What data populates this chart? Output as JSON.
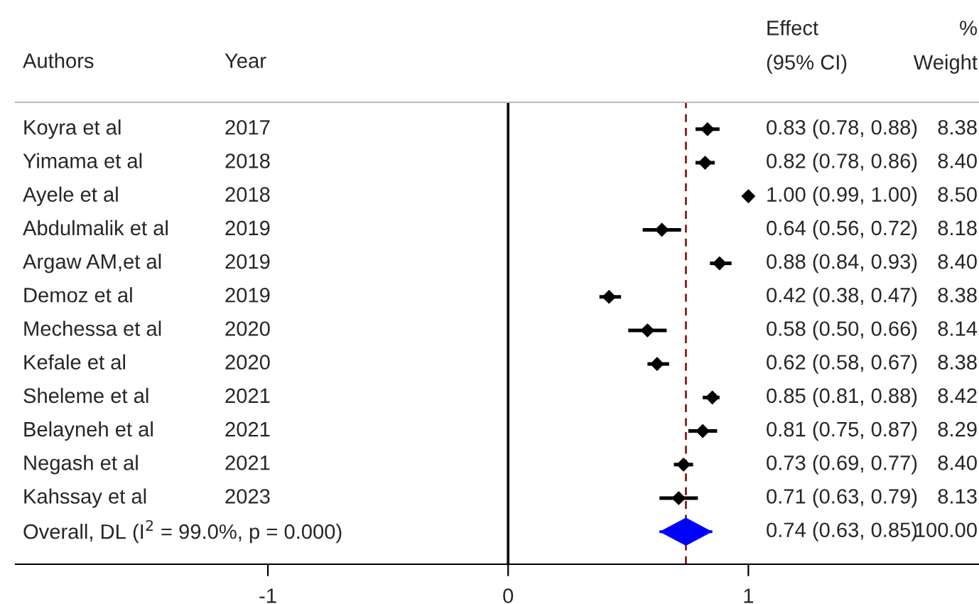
{
  "chart_data": {
    "type": "scatter",
    "orientation": "horizontal",
    "categories": [
      "Koyra et al",
      "Yimama et al",
      "Ayele et al",
      "Abdulmalik et al",
      "Argaw AM,et al",
      "Demoz et al",
      "Mechessa et al",
      "Kefale et al",
      "Sheleme et al",
      "Belayneh et al",
      "Negash et al",
      "Kahssay et al",
      "Overall, DL (I$^{2}$ = 99.0%, p = 0.000)"
    ],
    "series": [
      {
        "color": "#000000",
        "marker": "diamond",
        "values": [
          0.83,
          0.82,
          1.0,
          0.64,
          0.88,
          0.42,
          0.58,
          0.62,
          0.85,
          0.81,
          0.73,
          0.71,
          null
        ],
        "errors": [
          [
            0.78,
            0.88
          ],
          [
            0.78,
            0.86
          ],
          [
            0.99,
            1.0
          ],
          [
            0.56,
            0.72
          ],
          [
            0.84,
            0.93
          ],
          [
            0.38,
            0.47
          ],
          [
            0.5,
            0.66
          ],
          [
            0.58,
            0.67
          ],
          [
            0.81,
            0.88
          ],
          [
            0.75,
            0.87
          ],
          [
            0.69,
            0.77
          ],
          [
            0.63,
            0.79
          ],
          null
        ]
      },
      {
        "color": "#0000ff",
        "values": [
          null,
          null,
          null,
          null,
          null,
          null,
          null,
          null,
          null,
          null,
          null,
          null,
          0.74
        ],
        "errors": [
          null,
          null,
          null,
          null,
          null,
          null,
          null,
          null,
          null,
          null,
          null,
          null,
          [
            0.63,
            0.85
          ]
        ]
      }
    ],
    "xlim": [
      -2.05,
      1.96
    ],
    "xticks": [
      -1,
      0,
      1
    ],
    "tick_labels": "x",
    "grid": false,
    "legend": false,
    "ref_lines": [
      {
        "axis": "x",
        "value": 0,
        "color": "#000000",
        "line_style": "solid"
      },
      {
        "axis": "x",
        "value": 0.74,
        "color": "#8b1a1a",
        "line_style": "dashed"
      }
    ],
    "annotations": [
      "Authors",
      "Year",
      "Effect\n(95% CI)",
      "%\nWeight",
      "2017",
      "2018",
      "2018",
      "2019",
      "2019",
      "2019",
      "2020",
      "2020",
      "2021",
      "2021",
      "2021",
      "2023",
      "0.83 (0.78, 0.88)",
      "0.82 (0.78, 0.86)",
      "1.00 (0.99, 1.00)",
      "0.64 (0.56, 0.72)",
      "0.88 (0.84, 0.93)",
      "0.42 (0.38, 0.47)",
      "0.58 (0.50, 0.66)",
      "0.62 (0.58, 0.67)",
      "0.85 (0.81, 0.88)",
      "0.81 (0.75, 0.87)",
      "0.73 (0.69, 0.77)",
      "0.71 (0.63, 0.79)",
      "0.74 (0.63, 0.85)",
      "8.38",
      "8.40",
      "8.50",
      "8.18",
      "8.40",
      "8.38",
      "8.14",
      "8.38",
      "8.42",
      "8.29",
      "8.40",
      "8.13",
      "100.00"
    ]
  }
}
